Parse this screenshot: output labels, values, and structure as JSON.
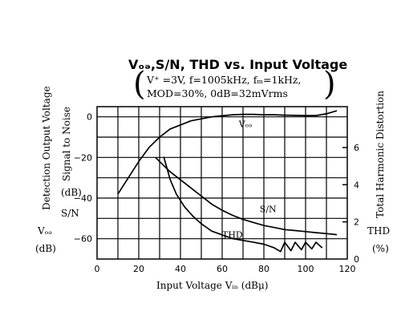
{
  "chart_data": {
    "type": "line",
    "title": "Vₒₔ,S/N, THD vs. Input Voltage",
    "conditions": [
      "V⁺ =3V, f=1005kHz, fₘ=1kHz,",
      "MOD=30%, 0dB=32mVrms"
    ],
    "xlabel": "Input Voltage Vᵢₙ (dBμ)",
    "ylabel_left_outer": [
      "Detection Output Voltage",
      "Vₒₔ",
      "(dB)"
    ],
    "ylabel_left_inner": [
      "Signal to Noise",
      "(dB)",
      "S/N"
    ],
    "ylabel_right": [
      "Total Harmonic Distortion",
      "THD",
      "(%)"
    ],
    "xlim": [
      0,
      120
    ],
    "ylim_left": [
      -70,
      5
    ],
    "ylim_right": [
      0,
      8.2
    ],
    "x_ticks": [
      0,
      20,
      40,
      60,
      80,
      100,
      120
    ],
    "y_ticks_left": [
      0,
      -20,
      -40,
      -60
    ],
    "y_ticks_right": [
      0,
      2,
      4,
      6
    ],
    "grid": true,
    "series": [
      {
        "name": "Vₒₔ",
        "axis": "left",
        "x": [
          10,
          15,
          20,
          25,
          30,
          35,
          40,
          45,
          50,
          55,
          60,
          65,
          70,
          75,
          80,
          85,
          90,
          95,
          100,
          105,
          110,
          115
        ],
        "y": [
          -38,
          -30,
          -22,
          -15,
          -10,
          -6,
          -4,
          -2,
          -1,
          0,
          0.5,
          1,
          1.2,
          1.2,
          1,
          1,
          0.8,
          0.7,
          0.6,
          0.6,
          1.5,
          3
        ]
      },
      {
        "name": "S/N",
        "axis": "left",
        "x": [
          28,
          35,
          40,
          45,
          50,
          55,
          60,
          65,
          70,
          75,
          80,
          85,
          90,
          95,
          100,
          105,
          110,
          115
        ],
        "y": [
          -20,
          -27,
          -31,
          -35,
          -39,
          -43,
          -46,
          -48.5,
          -50.5,
          -52,
          -53.5,
          -54.5,
          -55.5,
          -56,
          -56.5,
          -57,
          -57.5,
          -58
        ]
      },
      {
        "name": "THD",
        "axis": "right",
        "x": [
          32,
          35,
          38,
          42,
          46,
          50,
          55,
          60,
          65,
          70,
          75,
          80,
          85,
          88,
          90,
          93,
          95,
          98,
          100,
          103,
          105,
          108
        ],
        "y": [
          5.5,
          4.3,
          3.5,
          2.8,
          2.3,
          1.9,
          1.5,
          1.3,
          1.1,
          1.0,
          0.9,
          0.8,
          0.6,
          0.4,
          0.9,
          0.45,
          0.9,
          0.5,
          0.9,
          0.55,
          0.9,
          0.6
        ]
      }
    ],
    "series_labels": [
      {
        "text": "Vₒₔ",
        "x": 68,
        "y": -5
      },
      {
        "text": "S/N",
        "x": 78,
        "y": -47
      },
      {
        "text": "THD",
        "x": 60,
        "y": -59.5
      }
    ]
  }
}
